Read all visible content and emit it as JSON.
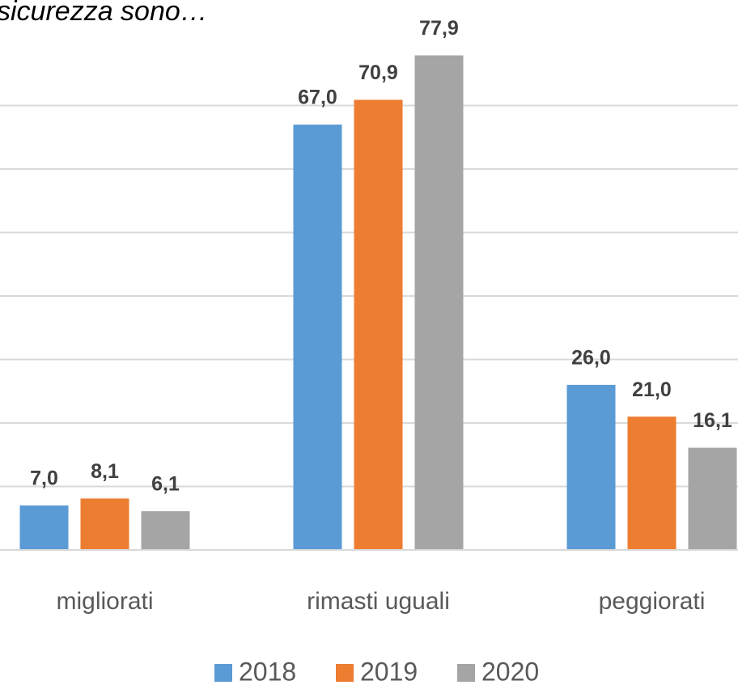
{
  "chart_data": {
    "type": "bar",
    "title": "sicurezza sono…",
    "categories": [
      "migliorati",
      "rimasti uguali",
      "peggiorati"
    ],
    "series": [
      {
        "name": "2018",
        "color": "#5b9bd5",
        "values": [
          7.0,
          67.0,
          26.0
        ],
        "value_labels": [
          "7,0",
          "67,0",
          "26,0"
        ]
      },
      {
        "name": "2019",
        "color": "#ed7d31",
        "values": [
          8.1,
          70.9,
          21.0
        ],
        "value_labels": [
          "8,1",
          "70,9",
          "21,0"
        ]
      },
      {
        "name": "2020",
        "color": "#a5a5a5",
        "values": [
          6.1,
          77.9,
          16.1
        ],
        "value_labels": [
          "6,1",
          "77,9",
          "16,1"
        ]
      }
    ],
    "ylim": [
      0,
      80
    ],
    "yticks": [
      0,
      10,
      20,
      30,
      40,
      50,
      60,
      70
    ],
    "grid": true,
    "legend": "bottom"
  }
}
